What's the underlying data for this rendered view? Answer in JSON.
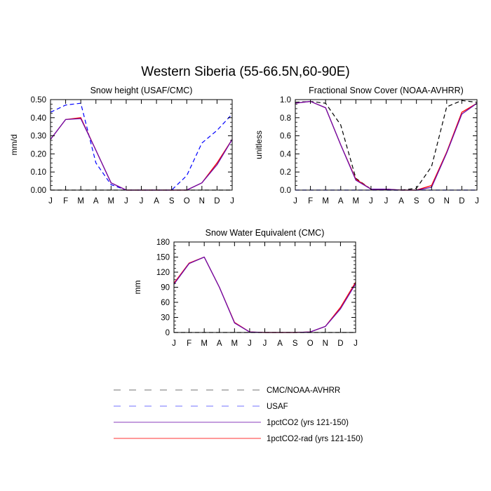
{
  "figure_title": "Western Siberia (55-66.5N,60-90E)",
  "legend": [
    {
      "label": "CMC/NOAA-AVHRR",
      "color": "#000000",
      "dashed": true
    },
    {
      "label": "USAF",
      "color": "#0000ff",
      "dashed": true
    },
    {
      "label": "1pctCO2 (yrs 121-150)",
      "color": "#6a0dad",
      "dashed": false
    },
    {
      "label": "1pctCO2-rad (yrs 121-150)",
      "color": "#ff0000",
      "dashed": false
    }
  ],
  "chart_data": [
    {
      "type": "line",
      "title": "Snow height (USAF/CMC)",
      "xlabel": "",
      "ylabel": "mm/d",
      "categories": [
        "J",
        "F",
        "M",
        "A",
        "M",
        "J",
        "J",
        "A",
        "S",
        "O",
        "N",
        "D",
        "J"
      ],
      "ylim": [
        0,
        0.5
      ],
      "yticks": [
        "0.00",
        "0.10",
        "0.20",
        "0.30",
        "0.40",
        "0.50"
      ],
      "series": [
        {
          "name": "CMC/NOAA-AVHRR",
          "color": "#000000",
          "dashed": true,
          "values": [
            0,
            0,
            0,
            0,
            0,
            0,
            0,
            0,
            0,
            0,
            0,
            0,
            0
          ]
        },
        {
          "name": "USAF",
          "color": "#0000ff",
          "dashed": true,
          "values": [
            0.43,
            0.47,
            0.48,
            0.15,
            0.03,
            0.0,
            0.0,
            0.0,
            0.0,
            0.08,
            0.26,
            0.33,
            0.42
          ]
        },
        {
          "name": "1pctCO2-rad (yrs 121-150)",
          "color": "#ff0000",
          "dashed": false,
          "values": [
            0.28,
            0.39,
            0.4,
            0.22,
            0.04,
            0.0,
            0.0,
            0.0,
            0.0,
            0.0,
            0.04,
            0.15,
            0.28
          ]
        },
        {
          "name": "1pctCO2 (yrs 121-150)",
          "color": "#6a0dad",
          "dashed": false,
          "values": [
            0.28,
            0.39,
            0.395,
            0.22,
            0.04,
            0.0,
            0.0,
            0.0,
            0.0,
            0.0,
            0.04,
            0.14,
            0.28
          ]
        }
      ]
    },
    {
      "type": "line",
      "title": "Fractional Snow Cover (NOAA-AVHRR)",
      "xlabel": "",
      "ylabel": "unitless",
      "categories": [
        "J",
        "F",
        "M",
        "A",
        "M",
        "J",
        "J",
        "A",
        "S",
        "O",
        "N",
        "D",
        "J"
      ],
      "ylim": [
        0,
        1.0
      ],
      "yticks": [
        "0.0",
        "0.2",
        "0.4",
        "0.6",
        "0.8",
        "1.0"
      ],
      "series": [
        {
          "name": "CMC/NOAA-AVHRR",
          "color": "#000000",
          "dashed": true,
          "values": [
            0.97,
            0.98,
            0.96,
            0.72,
            0.13,
            0.01,
            0.0,
            0.0,
            0.02,
            0.26,
            0.92,
            0.99,
            0.97
          ]
        },
        {
          "name": "USAF",
          "color": "#0000ff",
          "dashed": true,
          "values": [
            0,
            0,
            0,
            0,
            0,
            0,
            0,
            0,
            0,
            0,
            0,
            0,
            0
          ]
        },
        {
          "name": "1pctCO2-rad (yrs 121-150)",
          "color": "#ff0000",
          "dashed": false,
          "values": [
            0.96,
            0.98,
            0.91,
            0.5,
            0.12,
            0.01,
            0.01,
            0.0,
            0.0,
            0.05,
            0.42,
            0.86,
            0.96
          ]
        },
        {
          "name": "1pctCO2 (yrs 121-150)",
          "color": "#6a0dad",
          "dashed": false,
          "values": [
            0.96,
            0.98,
            0.91,
            0.5,
            0.11,
            0.01,
            0.01,
            0.0,
            0.0,
            0.03,
            0.41,
            0.84,
            0.96
          ]
        }
      ]
    },
    {
      "type": "line",
      "title": "Snow Water Equivalent (CMC)",
      "xlabel": "",
      "ylabel": "mm",
      "categories": [
        "J",
        "F",
        "M",
        "A",
        "M",
        "J",
        "J",
        "A",
        "S",
        "O",
        "N",
        "D",
        "J"
      ],
      "ylim": [
        0,
        180
      ],
      "yticks": [
        "0",
        "30",
        "60",
        "90",
        "120",
        "150",
        "180"
      ],
      "series": [
        {
          "name": "CMC/NOAA-AVHRR",
          "color": "#000000",
          "dashed": true,
          "values": [
            0,
            0,
            0,
            0,
            0,
            0,
            0,
            0,
            0,
            0,
            0,
            0,
            0
          ]
        },
        {
          "name": "1pctCO2-rad (yrs 121-150)",
          "color": "#ff0000",
          "dashed": false,
          "values": [
            98,
            138,
            150,
            90,
            20,
            1,
            0,
            0,
            0,
            1,
            12,
            50,
            100
          ]
        },
        {
          "name": "1pctCO2 (yrs 121-150)",
          "color": "#6a0dad",
          "dashed": false,
          "values": [
            96,
            137,
            150,
            90,
            19,
            1,
            0,
            0,
            0,
            1,
            12,
            47,
            97
          ]
        }
      ]
    }
  ]
}
